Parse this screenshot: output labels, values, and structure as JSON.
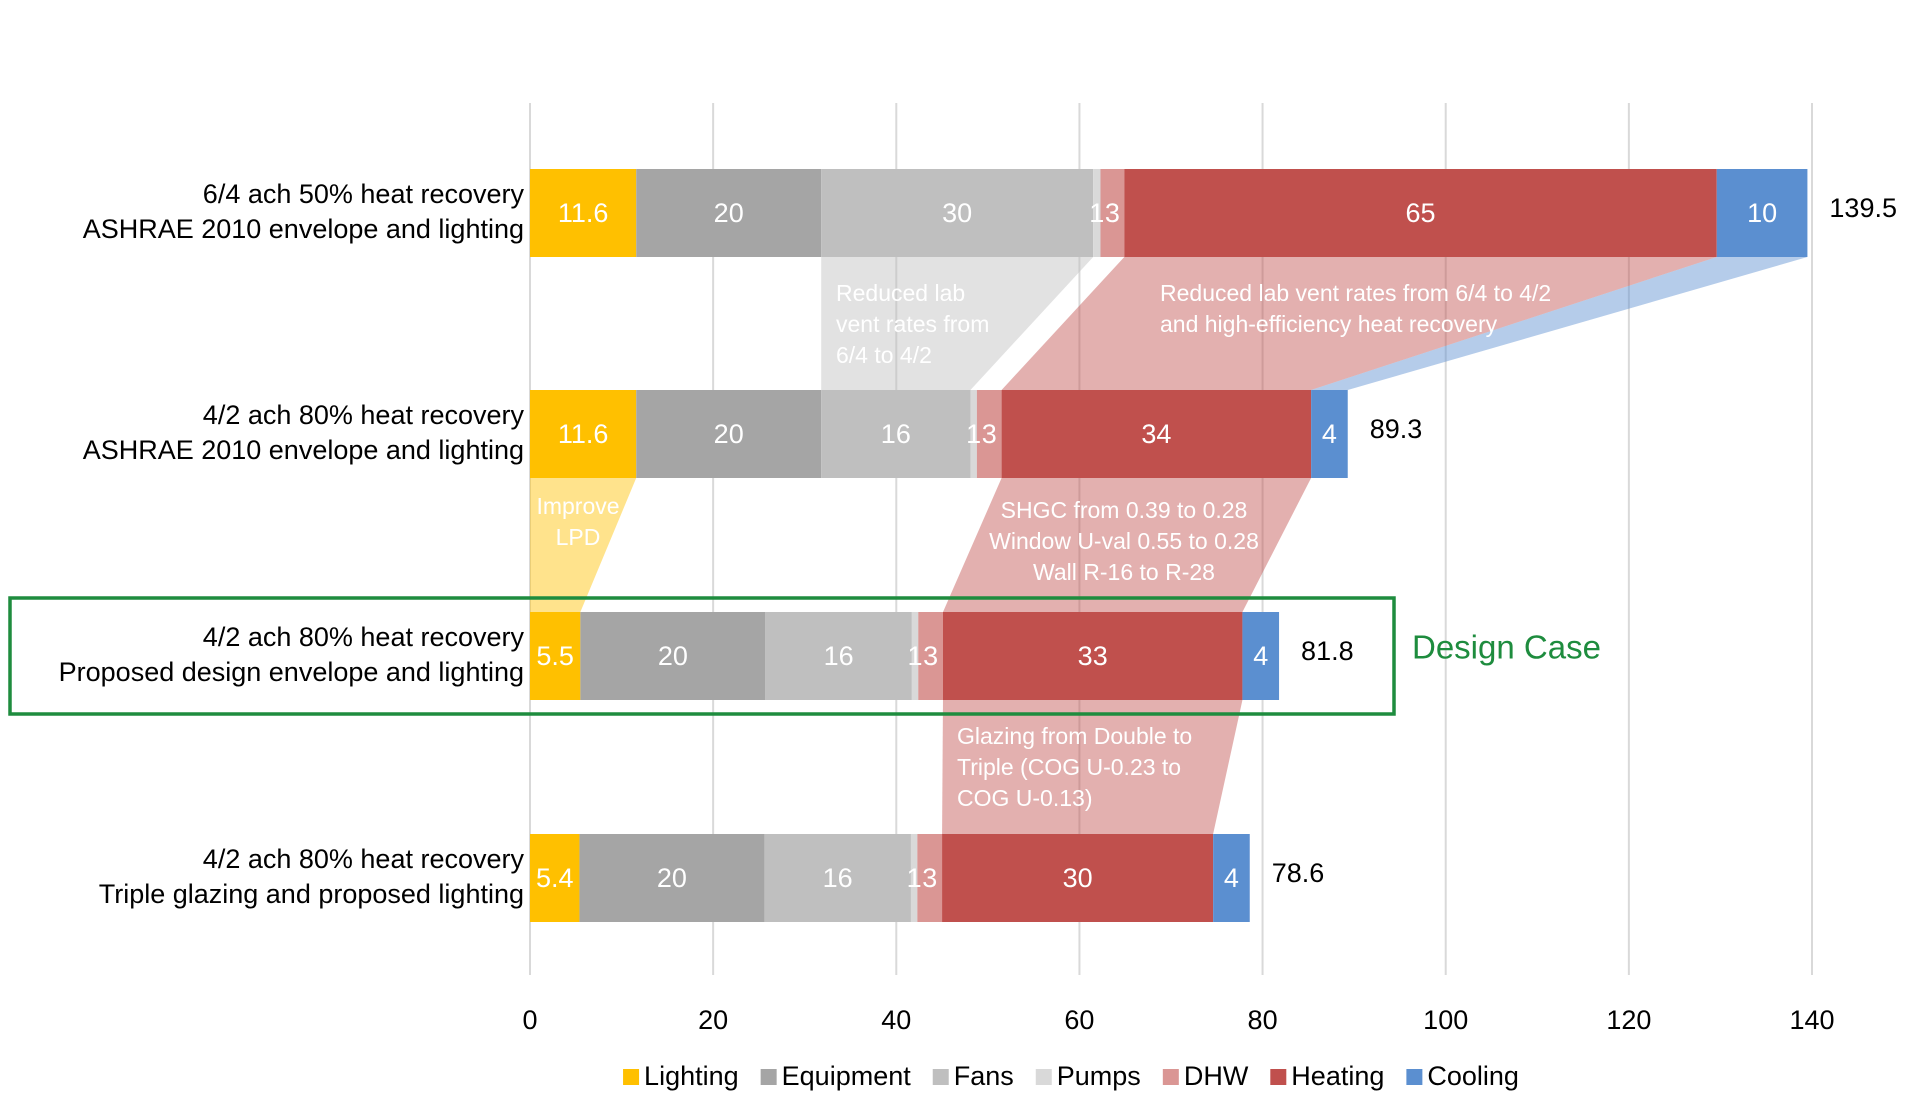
{
  "chart_data": {
    "type": "stacked-bar-horizontal",
    "categories": [
      [
        "6/4 ach 50% heat recovery",
        "ASHRAE 2010 envelope and lighting"
      ],
      [
        "4/2 ach 80% heat recovery",
        "ASHRAE 2010 envelope and lighting"
      ],
      [
        "4/2 ach 80% heat recovery",
        "Proposed design envelope and lighting"
      ],
      [
        "4/2 ach 80% heat recovery",
        "Triple glazing and proposed lighting"
      ]
    ],
    "series": [
      {
        "name": "Lighting",
        "color": "#ffc000",
        "values": [
          11.6,
          11.6,
          5.5,
          5.4
        ],
        "value_labels": [
          "11.6",
          "11.6",
          "5.5",
          "5.4"
        ]
      },
      {
        "name": "Equipment",
        "color": "#a5a5a5",
        "values": [
          20.2,
          20.2,
          20.2,
          20.2
        ],
        "value_labels": [
          "20",
          "20",
          "20",
          "20"
        ]
      },
      {
        "name": "Fans",
        "color": "#bfbfbf",
        "values": [
          29.7,
          16.3,
          16.0,
          16.0
        ],
        "value_labels": [
          "30",
          "16",
          "16",
          "16"
        ]
      },
      {
        "name": "Pumps",
        "color": "#d9d9d9",
        "values": [
          0.8,
          0.7,
          0.7,
          0.7
        ],
        "value_labels": [
          "1",
          "1",
          "1",
          "1"
        ]
      },
      {
        "name": "DHW",
        "color": "#da9694",
        "values": [
          2.6,
          2.7,
          2.7,
          2.7
        ],
        "value_labels": [
          "3",
          "3",
          "3",
          "3"
        ]
      },
      {
        "name": "Heating",
        "color": "#c0504d",
        "values": [
          64.7,
          33.8,
          32.7,
          29.6
        ],
        "value_labels": [
          "65",
          "34",
          "33",
          "30"
        ]
      },
      {
        "name": "Cooling",
        "color": "#5b8fd0",
        "values": [
          9.9,
          4.0,
          4.0,
          4.0
        ],
        "value_labels": [
          "10",
          "4",
          "4",
          "4"
        ]
      }
    ],
    "totals": [
      139.5,
      89.3,
      81.8,
      78.6
    ],
    "xlim": [
      0,
      140
    ],
    "xticks": [
      0,
      20,
      40,
      60,
      80,
      100,
      120,
      140
    ],
    "grid": true,
    "legend": "bottom",
    "annotations": [
      {
        "lines": [
          "Reduced lab",
          "vent rates from",
          "6/4 to 4/2"
        ]
      },
      {
        "lines": [
          "Reduced lab vent rates from 6/4 to 4/2",
          "and high-efficiency heat recovery"
        ]
      },
      {
        "lines": [
          "Improve",
          "LPD"
        ]
      },
      {
        "lines": [
          "SHGC from 0.39 to 0.28",
          "Window U-val 0.55 to 0.28",
          "Wall R-16 to R-28"
        ]
      },
      {
        "lines": [
          "Glazing from Double to",
          "Triple (COG U-0.23 to",
          "COG U-0.13)"
        ]
      }
    ],
    "highlight_label": "Design Case"
  }
}
